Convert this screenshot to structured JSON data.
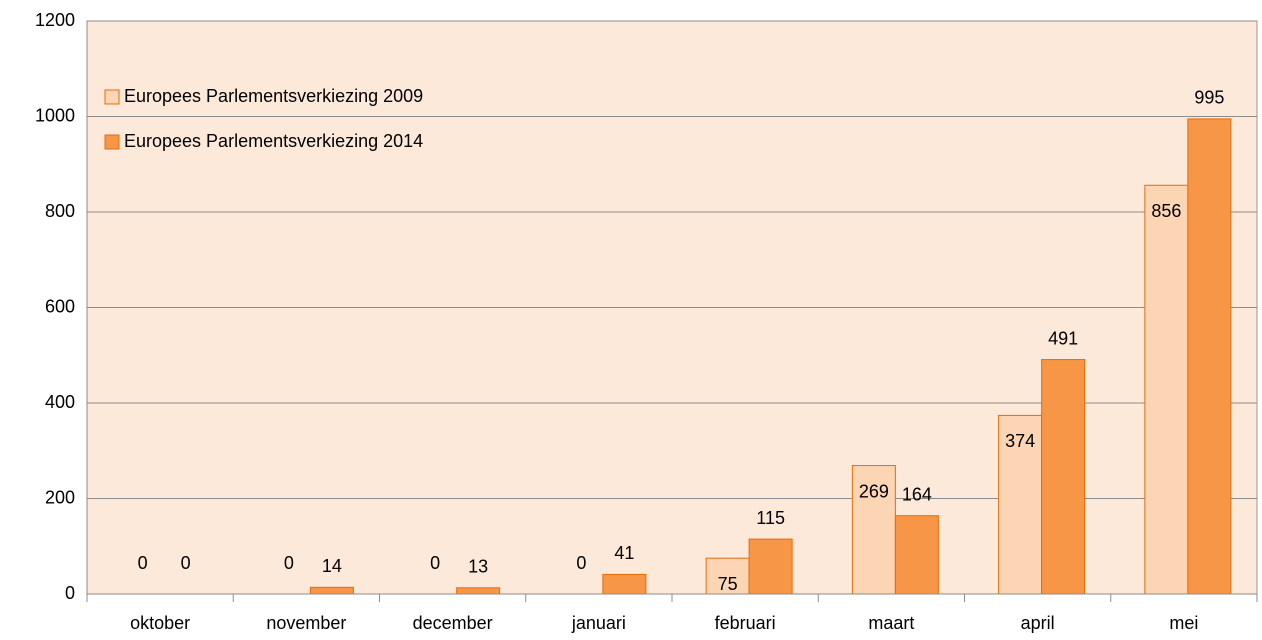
{
  "chart_data": {
    "type": "bar",
    "categories": [
      "oktober",
      "november",
      "december",
      "januari",
      "februari",
      "maart",
      "april",
      "mei"
    ],
    "series": [
      {
        "name": "Europees Parlementsverkiezing 2009",
        "color": "#fcd5b5",
        "values": [
          0,
          0,
          0,
          0,
          75,
          269,
          374,
          856
        ]
      },
      {
        "name": "Europees Parlementsverkiezing 2014",
        "color": "#f79646",
        "values": [
          0,
          14,
          13,
          41,
          115,
          164,
          491,
          995
        ]
      }
    ],
    "ylim": [
      0,
      1200
    ],
    "yticks": [
      0,
      200,
      400,
      600,
      800,
      1000,
      1200
    ],
    "grid": true,
    "legend": "upper left"
  }
}
